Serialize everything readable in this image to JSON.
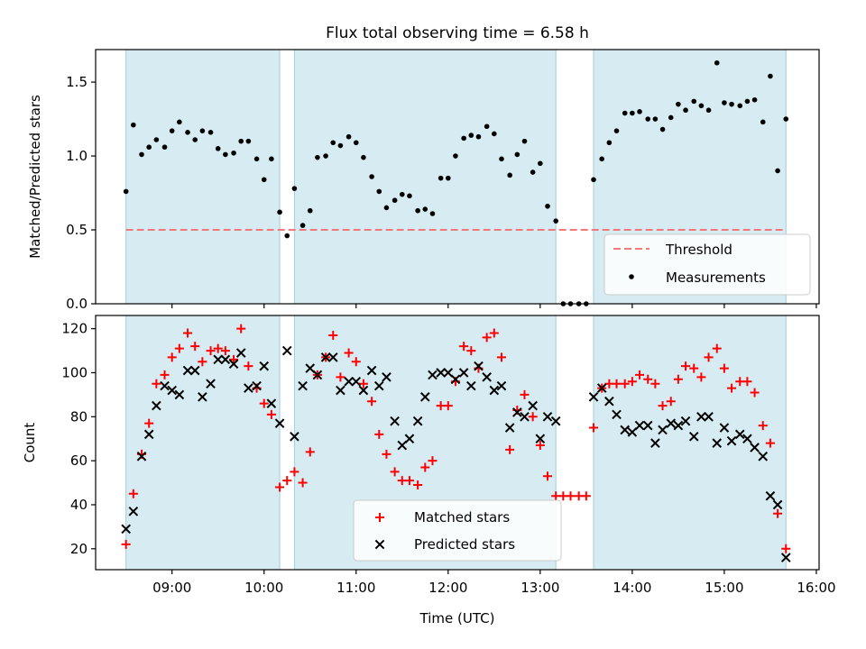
{
  "chart_data": [
    {
      "type": "scatter",
      "title": "Flux total observing time = 6.58 h",
      "xlabel": "",
      "ylabel": "Matched/Predicted stars",
      "xlim": [
        8.17,
        16.03
      ],
      "ylim": [
        0,
        1.72
      ],
      "yticks": [
        0.0,
        0.5,
        1.0,
        1.5
      ],
      "ytick_labels": [
        "0.0",
        "0.5",
        "1.0",
        "1.5"
      ],
      "observing_windows": [
        [
          8.5,
          10.17
        ],
        [
          10.33,
          13.17
        ],
        [
          13.58,
          15.67
        ]
      ],
      "threshold": {
        "name": "Threshold",
        "value": 0.5,
        "x_range": [
          8.5,
          15.67
        ],
        "color": "#f07a7a"
      },
      "series": [
        {
          "name": "Measurements",
          "color": "#000000",
          "points": [
            [
              8.5,
              0.76
            ],
            [
              8.58,
              1.21
            ],
            [
              8.67,
              1.01
            ],
            [
              8.75,
              1.06
            ],
            [
              8.83,
              1.11
            ],
            [
              8.92,
              1.06
            ],
            [
              9.0,
              1.17
            ],
            [
              9.08,
              1.23
            ],
            [
              9.17,
              1.16
            ],
            [
              9.25,
              1.11
            ],
            [
              9.33,
              1.17
            ],
            [
              9.42,
              1.16
            ],
            [
              9.5,
              1.05
            ],
            [
              9.58,
              1.01
            ],
            [
              9.67,
              1.02
            ],
            [
              9.75,
              1.1
            ],
            [
              9.83,
              1.1
            ],
            [
              9.92,
              0.98
            ],
            [
              10.0,
              0.84
            ],
            [
              10.08,
              0.98
            ],
            [
              10.17,
              0.62
            ],
            [
              10.25,
              0.46
            ],
            [
              10.33,
              0.78
            ],
            [
              10.42,
              0.53
            ],
            [
              10.5,
              0.63
            ],
            [
              10.58,
              0.99
            ],
            [
              10.67,
              1.0
            ],
            [
              10.75,
              1.09
            ],
            [
              10.83,
              1.07
            ],
            [
              10.92,
              1.13
            ],
            [
              11.0,
              1.09
            ],
            [
              11.08,
              0.99
            ],
            [
              11.17,
              0.86
            ],
            [
              11.25,
              0.76
            ],
            [
              11.33,
              0.65
            ],
            [
              11.42,
              0.7
            ],
            [
              11.5,
              0.74
            ],
            [
              11.58,
              0.73
            ],
            [
              11.67,
              0.63
            ],
            [
              11.75,
              0.64
            ],
            [
              11.83,
              0.61
            ],
            [
              11.92,
              0.85
            ],
            [
              12.0,
              0.85
            ],
            [
              12.08,
              1.0
            ],
            [
              12.17,
              1.12
            ],
            [
              12.25,
              1.14
            ],
            [
              12.33,
              1.13
            ],
            [
              12.42,
              1.2
            ],
            [
              12.5,
              1.15
            ],
            [
              12.58,
              0.98
            ],
            [
              12.67,
              0.87
            ],
            [
              12.75,
              1.01
            ],
            [
              12.83,
              1.1
            ],
            [
              12.92,
              0.89
            ],
            [
              13.0,
              0.95
            ],
            [
              13.08,
              0.66
            ],
            [
              13.17,
              0.56
            ],
            [
              13.25,
              0.0
            ],
            [
              13.33,
              0.0
            ],
            [
              13.42,
              0.0
            ],
            [
              13.5,
              0.0
            ],
            [
              13.58,
              0.84
            ],
            [
              13.67,
              0.98
            ],
            [
              13.75,
              1.09
            ],
            [
              13.83,
              1.17
            ],
            [
              13.92,
              1.29
            ],
            [
              14.0,
              1.29
            ],
            [
              14.08,
              1.3
            ],
            [
              14.17,
              1.25
            ],
            [
              14.25,
              1.25
            ],
            [
              14.33,
              1.18
            ],
            [
              14.42,
              1.26
            ],
            [
              14.5,
              1.35
            ],
            [
              14.58,
              1.31
            ],
            [
              14.67,
              1.37
            ],
            [
              14.75,
              1.34
            ],
            [
              14.83,
              1.31
            ],
            [
              14.92,
              1.63
            ],
            [
              15.0,
              1.36
            ],
            [
              15.08,
              1.35
            ],
            [
              15.17,
              1.34
            ],
            [
              15.25,
              1.37
            ],
            [
              15.33,
              1.38
            ],
            [
              15.42,
              1.23
            ],
            [
              15.5,
              1.54
            ],
            [
              15.58,
              0.9
            ],
            [
              15.67,
              1.25
            ]
          ]
        }
      ],
      "legend": {
        "position": "lower-right",
        "entries": [
          "Threshold",
          "Measurements"
        ]
      }
    },
    {
      "type": "scatter",
      "title": "",
      "xlabel": "Time (UTC)",
      "ylabel": "Count",
      "xlim": [
        8.17,
        16.03
      ],
      "ylim": [
        10.5,
        126
      ],
      "yticks": [
        20,
        40,
        60,
        80,
        100,
        120
      ],
      "ytick_labels": [
        "20",
        "40",
        "60",
        "80",
        "100",
        "120"
      ],
      "xticks": [
        9,
        10,
        11,
        12,
        13,
        14,
        15,
        16
      ],
      "xtick_labels": [
        "09:00",
        "10:00",
        "11:00",
        "12:00",
        "13:00",
        "14:00",
        "15:00",
        "16:00"
      ],
      "observing_windows": [
        [
          8.5,
          10.17
        ],
        [
          10.33,
          13.17
        ],
        [
          13.58,
          15.67
        ]
      ],
      "series": [
        {
          "name": "Matched stars",
          "marker": "plus",
          "color": "#ff0000",
          "points": [
            [
              8.5,
              22
            ],
            [
              8.58,
              45
            ],
            [
              8.67,
              63
            ],
            [
              8.75,
              77
            ],
            [
              8.83,
              95
            ],
            [
              8.92,
              99
            ],
            [
              9.0,
              107
            ],
            [
              9.08,
              111
            ],
            [
              9.17,
              118
            ],
            [
              9.25,
              112
            ],
            [
              9.33,
              105
            ],
            [
              9.42,
              110
            ],
            [
              9.5,
              111
            ],
            [
              9.58,
              110
            ],
            [
              9.67,
              106
            ],
            [
              9.75,
              120
            ],
            [
              9.83,
              103
            ],
            [
              9.92,
              93
            ],
            [
              10.0,
              86
            ],
            [
              10.08,
              81
            ],
            [
              10.17,
              48
            ],
            [
              10.25,
              51
            ],
            [
              10.33,
              55
            ],
            [
              10.42,
              50
            ],
            [
              10.5,
              64
            ],
            [
              10.58,
              99
            ],
            [
              10.67,
              107
            ],
            [
              10.75,
              117
            ],
            [
              10.83,
              98
            ],
            [
              10.92,
              109
            ],
            [
              11.0,
              105
            ],
            [
              11.08,
              95
            ],
            [
              11.17,
              87
            ],
            [
              11.25,
              72
            ],
            [
              11.33,
              63
            ],
            [
              11.42,
              55
            ],
            [
              11.5,
              51
            ],
            [
              11.58,
              51
            ],
            [
              11.67,
              49
            ],
            [
              11.75,
              57
            ],
            [
              11.83,
              60
            ],
            [
              11.92,
              85
            ],
            [
              12.0,
              85
            ],
            [
              12.08,
              96
            ],
            [
              12.17,
              112
            ],
            [
              12.25,
              110
            ],
            [
              12.33,
              102
            ],
            [
              12.42,
              116
            ],
            [
              12.5,
              118
            ],
            [
              12.58,
              107
            ],
            [
              12.67,
              65
            ],
            [
              12.75,
              83
            ],
            [
              12.83,
              90
            ],
            [
              12.92,
              80
            ],
            [
              13.0,
              67
            ],
            [
              13.08,
              53
            ],
            [
              13.17,
              44
            ],
            [
              13.25,
              44
            ],
            [
              13.33,
              44
            ],
            [
              13.42,
              44
            ],
            [
              13.5,
              44
            ],
            [
              13.58,
              75
            ],
            [
              13.67,
              93
            ],
            [
              13.75,
              95
            ],
            [
              13.83,
              95
            ],
            [
              13.92,
              95
            ],
            [
              14.0,
              96
            ],
            [
              14.08,
              99
            ],
            [
              14.17,
              97
            ],
            [
              14.25,
              95
            ],
            [
              14.33,
              85
            ],
            [
              14.42,
              87
            ],
            [
              14.5,
              97
            ],
            [
              14.58,
              103
            ],
            [
              14.67,
              102
            ],
            [
              14.75,
              98
            ],
            [
              14.83,
              107
            ],
            [
              14.92,
              111
            ],
            [
              15.0,
              102
            ],
            [
              15.08,
              93
            ],
            [
              15.17,
              96
            ],
            [
              15.25,
              96
            ],
            [
              15.33,
              91
            ],
            [
              15.42,
              76
            ],
            [
              15.5,
              68
            ],
            [
              15.58,
              36
            ],
            [
              15.67,
              20
            ]
          ]
        },
        {
          "name": "Predicted stars",
          "marker": "x",
          "color": "#000000",
          "points": [
            [
              8.5,
              29
            ],
            [
              8.58,
              37
            ],
            [
              8.67,
              62
            ],
            [
              8.75,
              72
            ],
            [
              8.83,
              85
            ],
            [
              8.92,
              94
            ],
            [
              9.0,
              92
            ],
            [
              9.08,
              90
            ],
            [
              9.17,
              101
            ],
            [
              9.25,
              101
            ],
            [
              9.33,
              89
            ],
            [
              9.42,
              95
            ],
            [
              9.5,
              106
            ],
            [
              9.58,
              106
            ],
            [
              9.67,
              104
            ],
            [
              9.75,
              109
            ],
            [
              9.83,
              93
            ],
            [
              9.92,
              94
            ],
            [
              10.0,
              103
            ],
            [
              10.08,
              86
            ],
            [
              10.17,
              77
            ],
            [
              10.25,
              110
            ],
            [
              10.33,
              71
            ],
            [
              10.42,
              94
            ],
            [
              10.5,
              102
            ],
            [
              10.58,
              99
            ],
            [
              10.67,
              107
            ],
            [
              10.75,
              107
            ],
            [
              10.83,
              92
            ],
            [
              10.92,
              96
            ],
            [
              11.0,
              96
            ],
            [
              11.08,
              92
            ],
            [
              11.17,
              101
            ],
            [
              11.25,
              94
            ],
            [
              11.33,
              98
            ],
            [
              11.42,
              78
            ],
            [
              11.5,
              67
            ],
            [
              11.58,
              70
            ],
            [
              11.67,
              78
            ],
            [
              11.75,
              89
            ],
            [
              11.83,
              99
            ],
            [
              11.92,
              100
            ],
            [
              12.0,
              100
            ],
            [
              12.08,
              97
            ],
            [
              12.17,
              100
            ],
            [
              12.25,
              94
            ],
            [
              12.33,
              103
            ],
            [
              12.42,
              98
            ],
            [
              12.5,
              92
            ],
            [
              12.58,
              94
            ],
            [
              12.67,
              75
            ],
            [
              12.75,
              82
            ],
            [
              12.83,
              80
            ],
            [
              12.92,
              85
            ],
            [
              13.0,
              70
            ],
            [
              13.08,
              80
            ],
            [
              13.17,
              78
            ],
            [
              13.58,
              89
            ],
            [
              13.67,
              93
            ],
            [
              13.75,
              87
            ],
            [
              13.83,
              81
            ],
            [
              13.92,
              74
            ],
            [
              14.0,
              73
            ],
            [
              14.08,
              76
            ],
            [
              14.17,
              76
            ],
            [
              14.25,
              68
            ],
            [
              14.33,
              74
            ],
            [
              14.42,
              77
            ],
            [
              14.5,
              76
            ],
            [
              14.58,
              78
            ],
            [
              14.67,
              71
            ],
            [
              14.75,
              80
            ],
            [
              14.83,
              80
            ],
            [
              14.92,
              68
            ],
            [
              15.0,
              75
            ],
            [
              15.08,
              69
            ],
            [
              15.17,
              72
            ],
            [
              15.25,
              70
            ],
            [
              15.33,
              66
            ],
            [
              15.42,
              62
            ],
            [
              15.5,
              44
            ],
            [
              15.58,
              40
            ],
            [
              15.67,
              16
            ]
          ]
        }
      ],
      "legend": {
        "position": "lower-center",
        "entries": [
          "Matched stars",
          "Predicted stars"
        ]
      }
    }
  ]
}
